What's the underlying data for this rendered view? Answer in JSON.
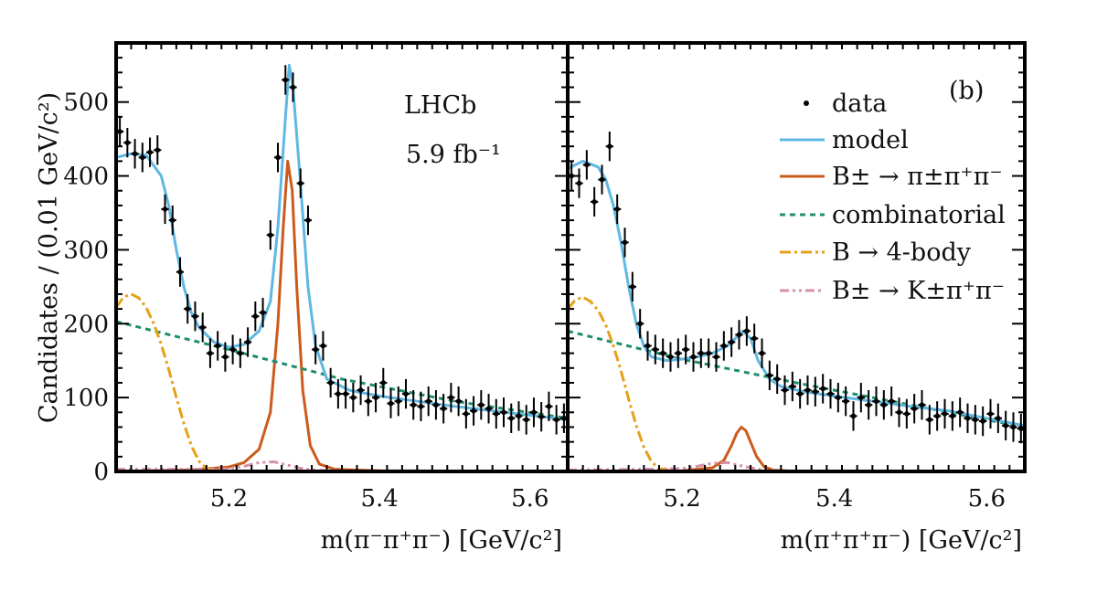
{
  "chart_data": [
    {
      "type": "scatter",
      "panel": "left",
      "title": "",
      "xlabel": "m(π⁻π⁺π⁻) [GeV/c²]",
      "ylabel": "Candidates / (0.01 GeV/c²)",
      "xlim": [
        5.05,
        5.65
      ],
      "ylim": [
        0,
        580
      ],
      "xticks": [
        "5.2",
        "5.4",
        "5.6"
      ],
      "xtick_values": [
        5.2,
        5.4,
        5.6
      ],
      "yticks": [
        "0",
        "100",
        "200",
        "300",
        "400",
        "500"
      ],
      "ytick_values": [
        0,
        100,
        200,
        300,
        400,
        500
      ],
      "annotations": [
        "LHCb",
        "5.9 fb⁻¹"
      ],
      "data": {
        "x": [
          5.055,
          5.065,
          5.075,
          5.085,
          5.095,
          5.105,
          5.115,
          5.125,
          5.135,
          5.145,
          5.155,
          5.165,
          5.175,
          5.185,
          5.195,
          5.205,
          5.215,
          5.225,
          5.235,
          5.245,
          5.255,
          5.265,
          5.275,
          5.285,
          5.295,
          5.305,
          5.315,
          5.325,
          5.335,
          5.345,
          5.355,
          5.365,
          5.375,
          5.385,
          5.395,
          5.405,
          5.415,
          5.425,
          5.435,
          5.445,
          5.455,
          5.465,
          5.475,
          5.485,
          5.495,
          5.505,
          5.515,
          5.525,
          5.535,
          5.545,
          5.555,
          5.565,
          5.575,
          5.585,
          5.595,
          5.605,
          5.615,
          5.625,
          5.635,
          5.645
        ],
        "y": [
          460,
          445,
          430,
          425,
          432,
          435,
          355,
          340,
          270,
          220,
          210,
          195,
          160,
          170,
          155,
          165,
          160,
          175,
          210,
          215,
          320,
          425,
          530,
          520,
          390,
          340,
          165,
          170,
          120,
          105,
          105,
          100,
          110,
          95,
          100,
          120,
          92,
          95,
          105,
          90,
          88,
          95,
          90,
          85,
          100,
          95,
          78,
          82,
          90,
          85,
          78,
          80,
          72,
          75,
          70,
          80,
          74,
          88,
          70,
          72
        ],
        "yerr": 20
      },
      "series": [
        {
          "name": "model",
          "color": "#5fb8e3",
          "x": [
            5.05,
            5.07,
            5.09,
            5.11,
            5.12,
            5.13,
            5.14,
            5.15,
            5.16,
            5.18,
            5.2,
            5.22,
            5.24,
            5.255,
            5.265,
            5.275,
            5.28,
            5.285,
            5.295,
            5.305,
            5.315,
            5.33,
            5.36,
            5.4,
            5.45,
            5.5,
            5.55,
            5.6,
            5.65
          ],
          "y": [
            425,
            430,
            428,
            400,
            360,
            300,
            250,
            215,
            195,
            175,
            168,
            172,
            190,
            230,
            330,
            480,
            550,
            520,
            390,
            250,
            170,
            125,
            110,
            102,
            95,
            88,
            82,
            76,
            70
          ]
        },
        {
          "name": "B± → π±π⁺π⁻",
          "color": "#cc5a1c",
          "x": [
            5.05,
            5.15,
            5.2,
            5.22,
            5.24,
            5.255,
            5.265,
            5.272,
            5.278,
            5.284,
            5.29,
            5.298,
            5.308,
            5.32,
            5.34,
            5.4,
            5.65
          ],
          "y": [
            0,
            2,
            6,
            12,
            30,
            80,
            200,
            330,
            420,
            380,
            250,
            110,
            35,
            10,
            3,
            1,
            0
          ]
        },
        {
          "name": "combinatorial",
          "color": "#1e8e6e",
          "x": [
            5.05,
            5.2,
            5.35,
            5.5,
            5.65
          ],
          "y": [
            203,
            165,
            125,
            95,
            72
          ]
        },
        {
          "name": "B → 4-body",
          "color": "#e6a019",
          "x": [
            5.05,
            5.06,
            5.07,
            5.08,
            5.09,
            5.1,
            5.11,
            5.12,
            5.13,
            5.14,
            5.15,
            5.16,
            5.17,
            5.19,
            5.22,
            5.65
          ],
          "y": [
            222,
            236,
            240,
            235,
            222,
            200,
            172,
            138,
            100,
            65,
            35,
            14,
            4,
            1,
            0,
            0
          ]
        },
        {
          "name": "B± → K±π⁺π⁻",
          "color": "#d690a9",
          "x": [
            5.05,
            5.15,
            5.2,
            5.22,
            5.24,
            5.26,
            5.28,
            5.3,
            5.33,
            5.4,
            5.65
          ],
          "y": [
            3,
            3,
            4,
            7,
            12,
            13,
            8,
            3,
            1,
            0,
            0
          ]
        }
      ]
    },
    {
      "type": "scatter",
      "panel": "right",
      "title": "",
      "xlabel": "m(π⁺π⁺π⁻) [GeV/c²]",
      "ylabel": "",
      "xlim": [
        5.05,
        5.65
      ],
      "ylim": [
        0,
        580
      ],
      "xticks": [
        "5.2",
        "5.4",
        "5.6"
      ],
      "xtick_values": [
        5.2,
        5.4,
        5.6
      ],
      "annotations": [
        "(b)"
      ],
      "legend": {
        "placement": "top-right",
        "entries": [
          "data",
          "model",
          "B± → π±π⁺π⁻",
          "combinatorial",
          "B → 4-body",
          "B± → K±π⁺π⁻"
        ]
      },
      "data": {
        "x": [
          5.055,
          5.065,
          5.075,
          5.085,
          5.095,
          5.105,
          5.115,
          5.125,
          5.135,
          5.145,
          5.155,
          5.165,
          5.175,
          5.185,
          5.195,
          5.205,
          5.215,
          5.225,
          5.235,
          5.245,
          5.255,
          5.265,
          5.275,
          5.285,
          5.295,
          5.305,
          5.315,
          5.325,
          5.335,
          5.345,
          5.355,
          5.365,
          5.375,
          5.385,
          5.395,
          5.405,
          5.415,
          5.425,
          5.435,
          5.445,
          5.455,
          5.465,
          5.475,
          5.485,
          5.495,
          5.505,
          5.515,
          5.525,
          5.535,
          5.545,
          5.555,
          5.565,
          5.575,
          5.585,
          5.595,
          5.605,
          5.615,
          5.625,
          5.635,
          5.645
        ],
        "y": [
          400,
          390,
          415,
          365,
          395,
          440,
          355,
          310,
          250,
          200,
          170,
          165,
          160,
          155,
          160,
          165,
          155,
          160,
          160,
          155,
          170,
          175,
          185,
          190,
          180,
          160,
          130,
          125,
          110,
          115,
          105,
          110,
          108,
          112,
          105,
          100,
          95,
          75,
          100,
          90,
          95,
          90,
          95,
          80,
          78,
          85,
          90,
          70,
          75,
          78,
          75,
          80,
          72,
          70,
          68,
          78,
          72,
          62,
          60,
          58
        ],
        "yerr": 20
      },
      "series": [
        {
          "name": "model",
          "color": "#5fb8e3",
          "x": [
            5.05,
            5.07,
            5.09,
            5.1,
            5.11,
            5.12,
            5.13,
            5.14,
            5.15,
            5.16,
            5.18,
            5.2,
            5.22,
            5.24,
            5.26,
            5.275,
            5.28,
            5.29,
            5.3,
            5.315,
            5.33,
            5.36,
            5.4,
            5.45,
            5.5,
            5.55,
            5.6,
            5.65
          ],
          "y": [
            410,
            420,
            412,
            395,
            360,
            310,
            250,
            200,
            170,
            155,
            150,
            152,
            155,
            160,
            170,
            185,
            190,
            180,
            150,
            125,
            115,
            108,
            102,
            95,
            88,
            82,
            72,
            62
          ]
        },
        {
          "name": "B± → π±π⁺π⁻",
          "color": "#cc5a1c",
          "x": [
            5.05,
            5.2,
            5.24,
            5.255,
            5.265,
            5.272,
            5.278,
            5.284,
            5.29,
            5.298,
            5.308,
            5.32,
            5.35,
            5.65
          ],
          "y": [
            0,
            1,
            5,
            15,
            35,
            52,
            60,
            55,
            40,
            20,
            6,
            2,
            0,
            0
          ]
        },
        {
          "name": "combinatorial",
          "color": "#1e8e6e",
          "x": [
            5.05,
            5.2,
            5.35,
            5.5,
            5.65
          ],
          "y": [
            190,
            152,
            120,
            90,
            60
          ]
        },
        {
          "name": "B → 4-body",
          "color": "#e6a019",
          "x": [
            5.05,
            5.06,
            5.07,
            5.08,
            5.09,
            5.1,
            5.11,
            5.12,
            5.13,
            5.14,
            5.15,
            5.16,
            5.17,
            5.19,
            5.22,
            5.65
          ],
          "y": [
            220,
            232,
            236,
            230,
            218,
            198,
            170,
            136,
            98,
            62,
            33,
            13,
            4,
            1,
            0,
            0
          ]
        },
        {
          "name": "B± → K±π⁺π⁻",
          "color": "#d690a9",
          "x": [
            5.05,
            5.15,
            5.2,
            5.22,
            5.24,
            5.26,
            5.28,
            5.3,
            5.33,
            5.4,
            5.65
          ],
          "y": [
            2,
            3,
            4,
            7,
            11,
            12,
            7,
            3,
            1,
            0,
            0
          ]
        }
      ]
    }
  ]
}
